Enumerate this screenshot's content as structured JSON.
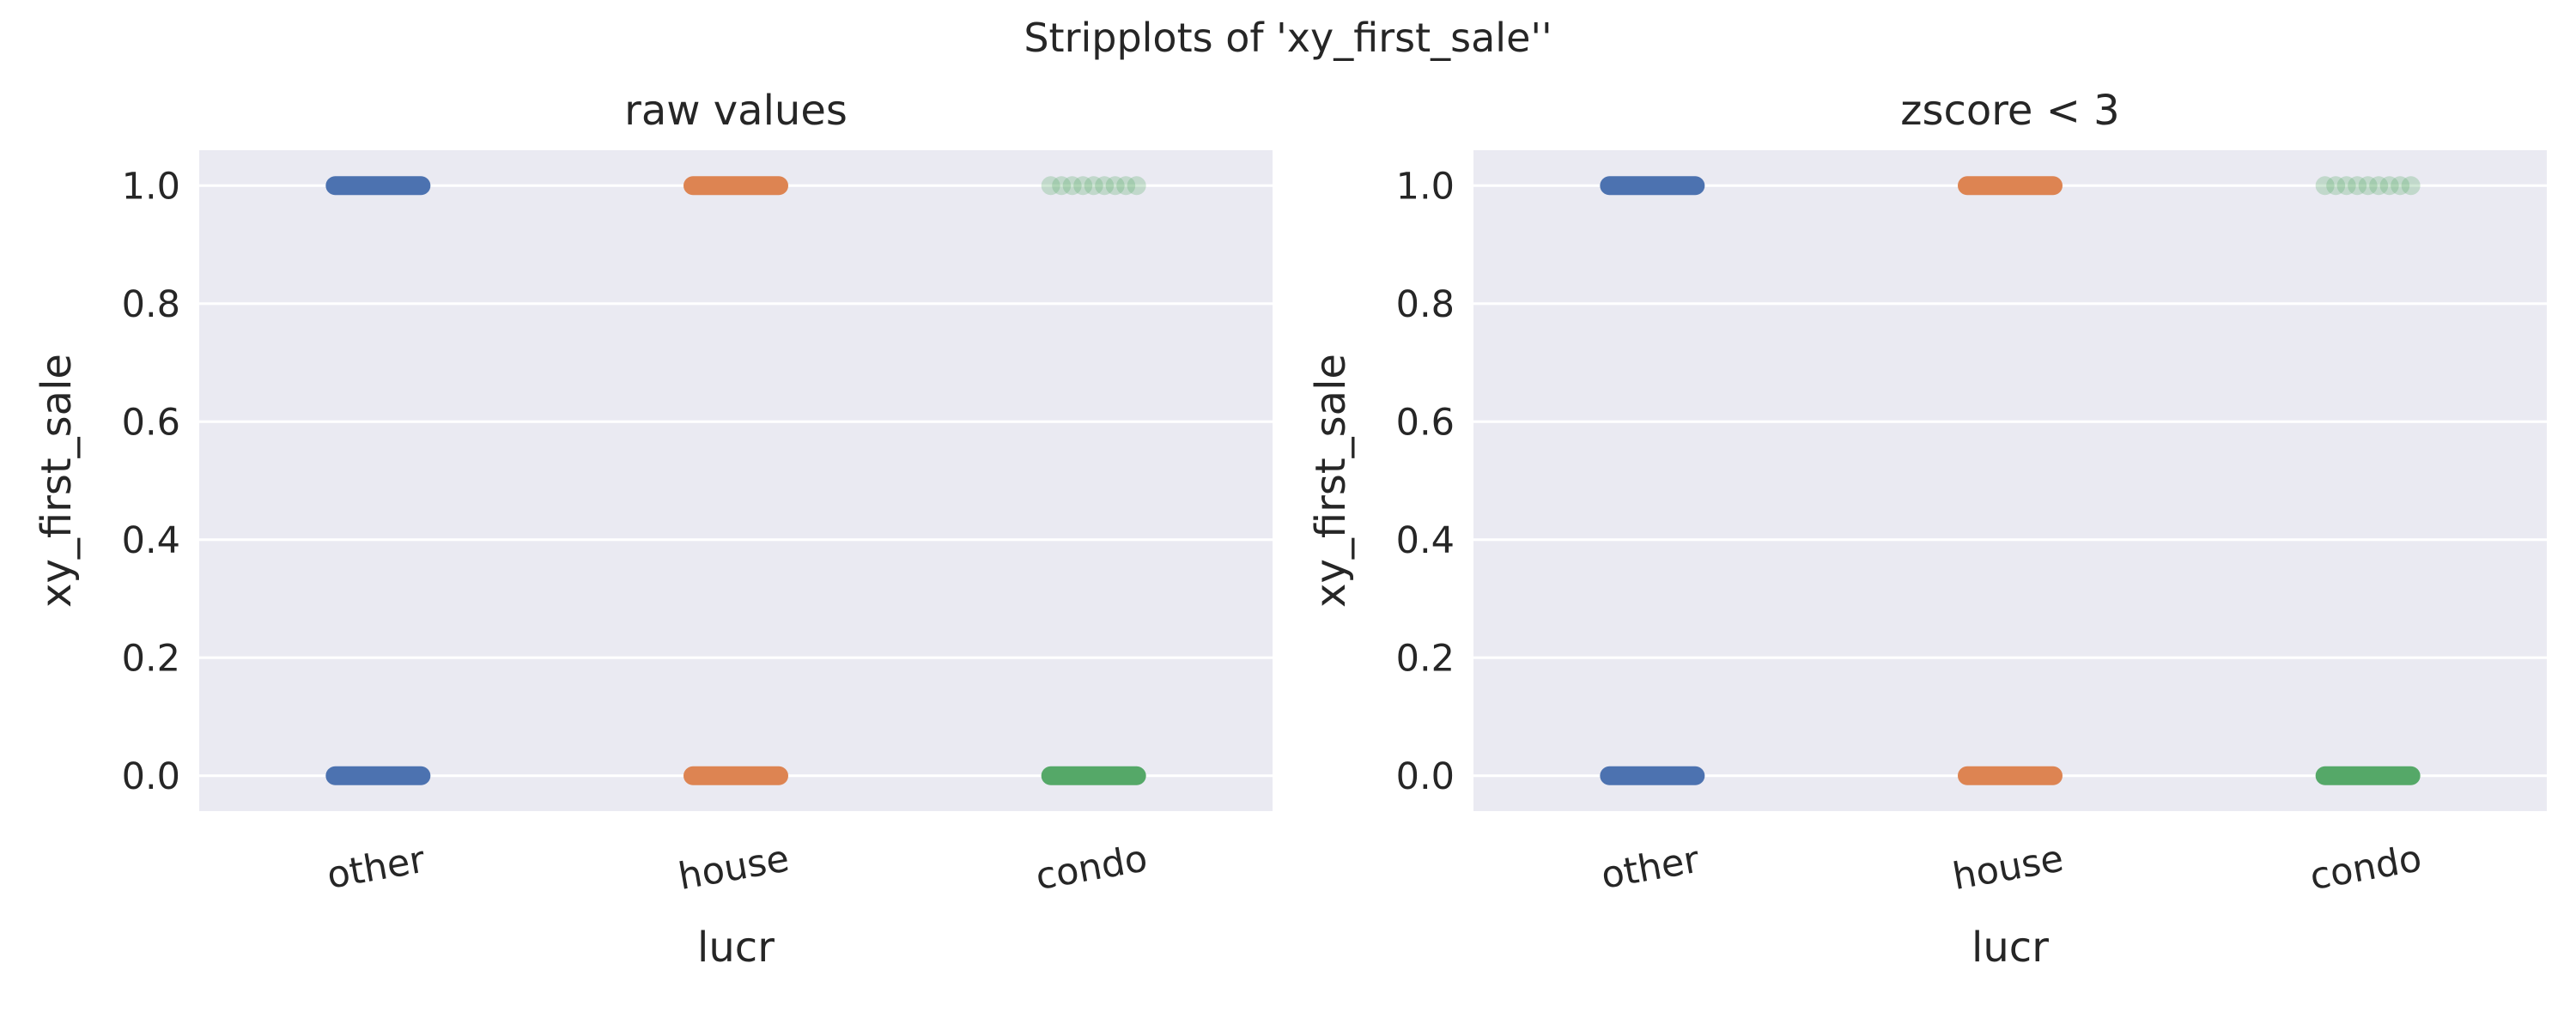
{
  "figure": {
    "suptitle": "Stripplots of 'xy_first_sale''"
  },
  "colors": {
    "background": "#eaeaf2",
    "grid": "#ffffff",
    "other": "#4c72b0",
    "house": "#dd8452",
    "condo": "#55a868"
  },
  "chart_data": [
    {
      "type": "scatter",
      "subtype": "stripplot",
      "title": "raw values",
      "xlabel": "lucr",
      "ylabel": "xy_first_sale",
      "categories": [
        "other",
        "house",
        "condo"
      ],
      "ylim": [
        -0.06,
        1.06
      ],
      "yticks": [
        "0.0",
        "0.2",
        "0.4",
        "0.6",
        "0.8",
        "1.0"
      ],
      "grid": true,
      "series": [
        {
          "category": "other",
          "color": "#4c72b0",
          "y_values": [
            0,
            1
          ],
          "density": [
            1.0,
            1.0
          ]
        },
        {
          "category": "house",
          "color": "#dd8452",
          "y_values": [
            0,
            1
          ],
          "density": [
            1.0,
            1.0
          ]
        },
        {
          "category": "condo",
          "color": "#55a868",
          "y_values": [
            0,
            1
          ],
          "density": [
            1.0,
            0.25
          ]
        }
      ]
    },
    {
      "type": "scatter",
      "subtype": "stripplot",
      "title": "zscore < 3",
      "xlabel": "lucr",
      "ylabel": "xy_first_sale",
      "categories": [
        "other",
        "house",
        "condo"
      ],
      "ylim": [
        -0.06,
        1.06
      ],
      "yticks": [
        "0.0",
        "0.2",
        "0.4",
        "0.6",
        "0.8",
        "1.0"
      ],
      "grid": true,
      "series": [
        {
          "category": "other",
          "color": "#4c72b0",
          "y_values": [
            0,
            1
          ],
          "density": [
            1.0,
            1.0
          ]
        },
        {
          "category": "house",
          "color": "#dd8452",
          "y_values": [
            0,
            1
          ],
          "density": [
            1.0,
            1.0
          ]
        },
        {
          "category": "condo",
          "color": "#55a868",
          "y_values": [
            0,
            1
          ],
          "density": [
            1.0,
            0.25
          ]
        }
      ]
    }
  ]
}
